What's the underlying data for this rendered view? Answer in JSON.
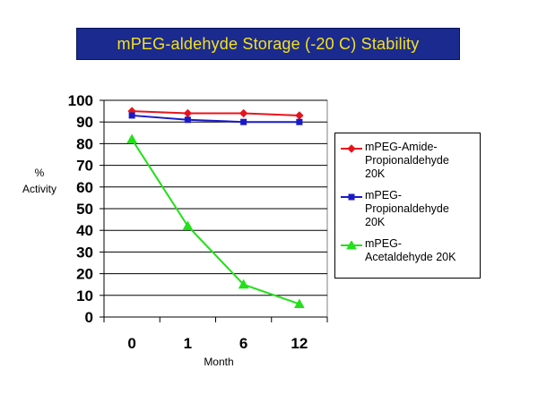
{
  "title": "mPEG-aldehyde Storage (-20 C) Stability",
  "colors": {
    "title_bg": "#1b2a8f",
    "title_text": "#f5e21a"
  },
  "chart_data": {
    "type": "line",
    "title": "mPEG-aldehyde Storage (-20 C) Stability",
    "xlabel": "Month",
    "ylabel": "%\nActivity",
    "categories": [
      "0",
      "1",
      "6",
      "12"
    ],
    "ylim": [
      0,
      100
    ],
    "yticks": [
      "0",
      "10",
      "20",
      "30",
      "40",
      "50",
      "60",
      "70",
      "80",
      "90",
      "100"
    ],
    "grid": "horizontal",
    "legend_position": "right",
    "series": [
      {
        "name": "mPEG-Amide-\nPropionaldehyde\n20K",
        "color": "#e8141b",
        "marker": "diamond",
        "values": [
          95,
          94,
          94,
          93
        ]
      },
      {
        "name": "mPEG-\nPropionaldehyde\n20K",
        "color": "#1a1ac8",
        "marker": "square",
        "values": [
          93,
          91,
          90,
          90
        ]
      },
      {
        "name": "mPEG-\nAcetaldehyde 20K",
        "color": "#22e019",
        "marker": "triangle",
        "values": [
          82,
          42,
          15,
          6
        ]
      }
    ]
  }
}
